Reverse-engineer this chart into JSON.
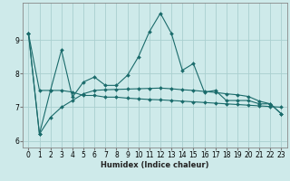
{
  "xlabel": "Humidex (Indice chaleur)",
  "background_color": "#ceeaea",
  "grid_color": "#aacfcf",
  "line_color": "#1a6b6b",
  "x_values": [
    0,
    1,
    2,
    3,
    4,
    5,
    6,
    7,
    8,
    9,
    10,
    11,
    12,
    13,
    14,
    15,
    16,
    17,
    18,
    19,
    20,
    21,
    22,
    23
  ],
  "series": [
    [
      9.2,
      6.2,
      7.5,
      8.7,
      7.3,
      7.75,
      7.9,
      7.65,
      7.65,
      7.95,
      8.5,
      9.25,
      9.8,
      9.2,
      8.1,
      8.3,
      7.45,
      7.5,
      7.2,
      7.2,
      7.2,
      7.1,
      7.1,
      6.8
    ],
    [
      9.2,
      7.5,
      7.5,
      7.5,
      7.45,
      7.35,
      7.35,
      7.3,
      7.3,
      7.27,
      7.25,
      7.23,
      7.22,
      7.2,
      7.18,
      7.16,
      7.14,
      7.12,
      7.1,
      7.08,
      7.06,
      7.04,
      7.02,
      7.0
    ],
    [
      9.2,
      6.2,
      6.7,
      7.0,
      7.2,
      7.4,
      7.5,
      7.52,
      7.53,
      7.54,
      7.55,
      7.56,
      7.57,
      7.55,
      7.52,
      7.5,
      7.47,
      7.44,
      7.4,
      7.37,
      7.32,
      7.18,
      7.1,
      6.8
    ]
  ],
  "ylim": [
    5.8,
    10.1
  ],
  "yticks": [
    6,
    7,
    8,
    9
  ],
  "xticks": [
    0,
    1,
    2,
    3,
    4,
    5,
    6,
    7,
    8,
    9,
    10,
    11,
    12,
    13,
    14,
    15,
    16,
    17,
    18,
    19,
    20,
    21,
    22,
    23
  ],
  "markersize": 2.0,
  "linewidth": 0.8,
  "tick_fontsize": 5.5,
  "xlabel_fontsize": 6.0
}
